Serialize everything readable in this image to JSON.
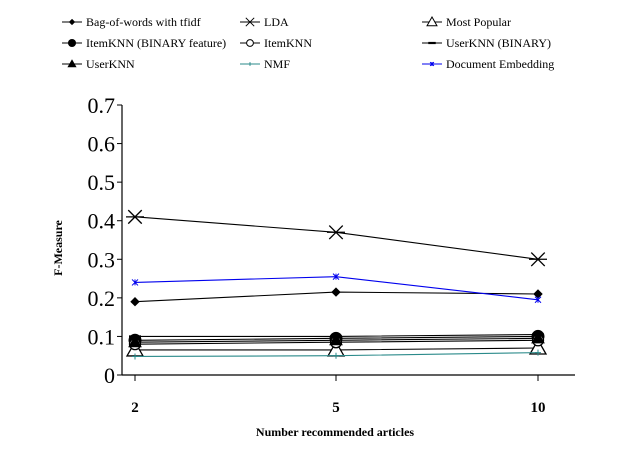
{
  "chart_data": {
    "type": "line",
    "title": "",
    "xlabel": "Number recommended articles",
    "ylabel": "F-Measure",
    "x": [
      2,
      5,
      10
    ],
    "x_tick_labels": [
      "2",
      "5",
      "10"
    ],
    "ylim": [
      0,
      0.7
    ],
    "y_ticks": [
      0,
      0.1,
      0.2,
      0.3,
      0.4,
      0.5,
      0.6,
      0.7
    ],
    "y_tick_labels": [
      "0",
      "0.1",
      "0.2",
      "0.3",
      "0.4",
      "0.5",
      "0.6",
      "0.7"
    ],
    "grid": false,
    "legend_position": "top",
    "series": [
      {
        "name": "Bag-of-words with tfidf",
        "values": [
          0.19,
          0.215,
          0.21
        ],
        "color": "#000000",
        "marker": "diamond"
      },
      {
        "name": "LDA",
        "values": [
          0.41,
          0.37,
          0.3
        ],
        "color": "#000000",
        "marker": "asterisk"
      },
      {
        "name": "Most Popular",
        "values": [
          0.065,
          0.065,
          0.07
        ],
        "color": "#000000",
        "marker": "triangle-open"
      },
      {
        "name": "ItemKNN (BINARY feature)",
        "values": [
          0.09,
          0.095,
          0.1
        ],
        "color": "#000000",
        "marker": "circle-filled"
      },
      {
        "name": "ItemKNN",
        "values": [
          0.08,
          0.085,
          0.09
        ],
        "color": "#000000",
        "marker": "circle-open"
      },
      {
        "name": "UserKNN (BINARY)",
        "values": [
          0.1,
          0.1,
          0.105
        ],
        "color": "#000000",
        "marker": "dash"
      },
      {
        "name": "UserKNN",
        "values": [
          0.085,
          0.09,
          0.095
        ],
        "color": "#000000",
        "marker": "triangle-filled"
      },
      {
        "name": "NMF",
        "values": [
          0.048,
          0.05,
          0.058
        ],
        "color": "#2a8a8a",
        "marker": "plus"
      },
      {
        "name": "Document Embedding",
        "values": [
          0.24,
          0.255,
          0.195
        ],
        "color": "#0000ee",
        "marker": "star"
      }
    ]
  }
}
